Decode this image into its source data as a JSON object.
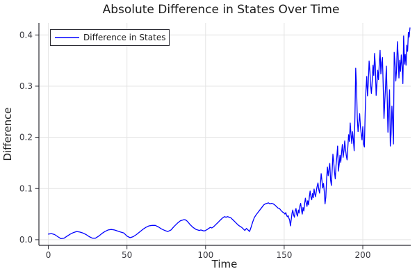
{
  "chart_data": {
    "type": "line",
    "title": "Absolute Difference in States Over Time",
    "xlabel": "Time",
    "ylabel": "Difference",
    "legend": {
      "position": "top-left",
      "label": "Difference in States"
    },
    "line_color": "#0000ff",
    "grid_color": "#e4e4e4",
    "axis_color": "#2b2b33",
    "background": "#ffffff",
    "grid": true,
    "xlim": [
      -6,
      230.5
    ],
    "ylim": [
      -0.011,
      0.4235
    ],
    "xticks": {
      "values": [
        0,
        50,
        100,
        150,
        200
      ],
      "labels": [
        "0",
        "50",
        "100",
        "150",
        "200"
      ]
    },
    "yticks": {
      "values": [
        0,
        0.1,
        0.2,
        0.3,
        0.4
      ],
      "labels": [
        "0.0",
        "0.1",
        "0.2",
        "0.3",
        "0.4"
      ]
    },
    "series": [
      {
        "name": "Difference in States",
        "points": [
          [
            0,
            0.011
          ],
          [
            2,
            0.012
          ],
          [
            4,
            0.01
          ],
          [
            6,
            0.006
          ],
          [
            8,
            0.002
          ],
          [
            10,
            0.003
          ],
          [
            12,
            0.007
          ],
          [
            14,
            0.011
          ],
          [
            16,
            0.014
          ],
          [
            18,
            0.016
          ],
          [
            20,
            0.015
          ],
          [
            22,
            0.013
          ],
          [
            24,
            0.01
          ],
          [
            26,
            0.006
          ],
          [
            28,
            0.003
          ],
          [
            30,
            0.003
          ],
          [
            32,
            0.007
          ],
          [
            34,
            0.012
          ],
          [
            36,
            0.016
          ],
          [
            38,
            0.019
          ],
          [
            40,
            0.02
          ],
          [
            42,
            0.019
          ],
          [
            44,
            0.017
          ],
          [
            46,
            0.015
          ],
          [
            48,
            0.013
          ],
          [
            50,
            0.007
          ],
          [
            52,
            0.004
          ],
          [
            54,
            0.006
          ],
          [
            56,
            0.01
          ],
          [
            58,
            0.015
          ],
          [
            60,
            0.02
          ],
          [
            62,
            0.024
          ],
          [
            64,
            0.027
          ],
          [
            66,
            0.028
          ],
          [
            68,
            0.028
          ],
          [
            70,
            0.025
          ],
          [
            72,
            0.021
          ],
          [
            74,
            0.018
          ],
          [
            76,
            0.016
          ],
          [
            78,
            0.019
          ],
          [
            80,
            0.026
          ],
          [
            82,
            0.032
          ],
          [
            84,
            0.037
          ],
          [
            86,
            0.039
          ],
          [
            87,
            0.039
          ],
          [
            88,
            0.037
          ],
          [
            89,
            0.034
          ],
          [
            90,
            0.03
          ],
          [
            91,
            0.027
          ],
          [
            92,
            0.024
          ],
          [
            93,
            0.022
          ],
          [
            94,
            0.02
          ],
          [
            95,
            0.019
          ],
          [
            96,
            0.018
          ],
          [
            97,
            0.019
          ],
          [
            98,
            0.018
          ],
          [
            99,
            0.017
          ],
          [
            100,
            0.018
          ],
          [
            101,
            0.02
          ],
          [
            102,
            0.022
          ],
          [
            103,
            0.024
          ],
          [
            104,
            0.023
          ],
          [
            105,
            0.025
          ],
          [
            106,
            0.028
          ],
          [
            107,
            0.031
          ],
          [
            108,
            0.034
          ],
          [
            109,
            0.037
          ],
          [
            110,
            0.04
          ],
          [
            111,
            0.043
          ],
          [
            112,
            0.045
          ],
          [
            113,
            0.044
          ],
          [
            114,
            0.045
          ],
          [
            115,
            0.044
          ],
          [
            116,
            0.043
          ],
          [
            117,
            0.04
          ],
          [
            118,
            0.037
          ],
          [
            119,
            0.034
          ],
          [
            120,
            0.031
          ],
          [
            121,
            0.028
          ],
          [
            122,
            0.026
          ],
          [
            123,
            0.024
          ],
          [
            124,
            0.021
          ],
          [
            125,
            0.018
          ],
          [
            126,
            0.022
          ],
          [
            127,
            0.019
          ],
          [
            128,
            0.016
          ],
          [
            129,
            0.025
          ],
          [
            130,
            0.035
          ],
          [
            131,
            0.043
          ],
          [
            132,
            0.048
          ],
          [
            133,
            0.052
          ],
          [
            134,
            0.056
          ],
          [
            135,
            0.06
          ],
          [
            136,
            0.064
          ],
          [
            137,
            0.068
          ],
          [
            138,
            0.07
          ],
          [
            139,
            0.071
          ],
          [
            140,
            0.072
          ],
          [
            141,
            0.07
          ],
          [
            142,
            0.071
          ],
          [
            143,
            0.07
          ],
          [
            144,
            0.068
          ],
          [
            145,
            0.065
          ],
          [
            146,
            0.062
          ],
          [
            147,
            0.061
          ],
          [
            148,
            0.057
          ],
          [
            149,
            0.054
          ],
          [
            150,
            0.052
          ],
          [
            150.5,
            0.05
          ],
          [
            151,
            0.053
          ],
          [
            151.5,
            0.048
          ],
          [
            152,
            0.045
          ],
          [
            152.5,
            0.047
          ],
          [
            153,
            0.042
          ],
          [
            153.5,
            0.038
          ],
          [
            154,
            0.027
          ],
          [
            154.5,
            0.04
          ],
          [
            155,
            0.052
          ],
          [
            155.5,
            0.058
          ],
          [
            156,
            0.048
          ],
          [
            156.5,
            0.044
          ],
          [
            157,
            0.056
          ],
          [
            157.5,
            0.061
          ],
          [
            158,
            0.05
          ],
          [
            158.5,
            0.046
          ],
          [
            159,
            0.058
          ],
          [
            159.5,
            0.052
          ],
          [
            160,
            0.066
          ],
          [
            160.5,
            0.071
          ],
          [
            161,
            0.058
          ],
          [
            161.5,
            0.05
          ],
          [
            162,
            0.063
          ],
          [
            162.5,
            0.056
          ],
          [
            163,
            0.07
          ],
          [
            163.5,
            0.081
          ],
          [
            164,
            0.072
          ],
          [
            164.5,
            0.065
          ],
          [
            165,
            0.076
          ],
          [
            165.5,
            0.068
          ],
          [
            166,
            0.084
          ],
          [
            166.5,
            0.095
          ],
          [
            167,
            0.083
          ],
          [
            167.5,
            0.078
          ],
          [
            168,
            0.09
          ],
          [
            168.5,
            0.082
          ],
          [
            169,
            0.099
          ],
          [
            169.5,
            0.089
          ],
          [
            170,
            0.084
          ],
          [
            170.5,
            0.097
          ],
          [
            171,
            0.105
          ],
          [
            171.5,
            0.111
          ],
          [
            172,
            0.098
          ],
          [
            172.5,
            0.091
          ],
          [
            173,
            0.106
          ],
          [
            173.5,
            0.129
          ],
          [
            174,
            0.116
          ],
          [
            174.5,
            0.101
          ],
          [
            175,
            0.11
          ],
          [
            175.5,
            0.094
          ],
          [
            176,
            0.07
          ],
          [
            176.5,
            0.083
          ],
          [
            177,
            0.12
          ],
          [
            177.5,
            0.142
          ],
          [
            178,
            0.125
          ],
          [
            178.5,
            0.138
          ],
          [
            179,
            0.149
          ],
          [
            179.5,
            0.117
          ],
          [
            180,
            0.106
          ],
          [
            180.5,
            0.135
          ],
          [
            181,
            0.167
          ],
          [
            181.5,
            0.151
          ],
          [
            182,
            0.132
          ],
          [
            182.5,
            0.119
          ],
          [
            183,
            0.146
          ],
          [
            183.5,
            0.163
          ],
          [
            184,
            0.183
          ],
          [
            184.5,
            0.134
          ],
          [
            185,
            0.148
          ],
          [
            185.5,
            0.165
          ],
          [
            186,
            0.151
          ],
          [
            186.5,
            0.171
          ],
          [
            187,
            0.186
          ],
          [
            187.5,
            0.161
          ],
          [
            188,
            0.174
          ],
          [
            188.5,
            0.193
          ],
          [
            189,
            0.177
          ],
          [
            189.5,
            0.164
          ],
          [
            190,
            0.156
          ],
          [
            190.5,
            0.181
          ],
          [
            191,
            0.205
          ],
          [
            191.5,
            0.192
          ],
          [
            192,
            0.228
          ],
          [
            192.5,
            0.206
          ],
          [
            193,
            0.188
          ],
          [
            193.5,
            0.211
          ],
          [
            194,
            0.196
          ],
          [
            194.5,
            0.174
          ],
          [
            195,
            0.24
          ],
          [
            195.5,
            0.335
          ],
          [
            196,
            0.298
          ],
          [
            196.5,
            0.237
          ],
          [
            197,
            0.211
          ],
          [
            197.5,
            0.227
          ],
          [
            198,
            0.246
          ],
          [
            198.5,
            0.221
          ],
          [
            199,
            0.207
          ],
          [
            199.5,
            0.195
          ],
          [
            200,
            0.221
          ],
          [
            200.5,
            0.187
          ],
          [
            201,
            0.181
          ],
          [
            201.5,
            0.246
          ],
          [
            202,
            0.291
          ],
          [
            202.5,
            0.319
          ],
          [
            203,
            0.281
          ],
          [
            203.5,
            0.306
          ],
          [
            204,
            0.349
          ],
          [
            204.5,
            0.329
          ],
          [
            205,
            0.301
          ],
          [
            205.5,
            0.286
          ],
          [
            206,
            0.311
          ],
          [
            206.5,
            0.341
          ],
          [
            207,
            0.321
          ],
          [
            207.5,
            0.364
          ],
          [
            208,
            0.339
          ],
          [
            208.5,
            0.282
          ],
          [
            209,
            0.306
          ],
          [
            209.5,
            0.331
          ],
          [
            210,
            0.313
          ],
          [
            210.5,
            0.346
          ],
          [
            211,
            0.37
          ],
          [
            211.5,
            0.324
          ],
          [
            212,
            0.346
          ],
          [
            212.5,
            0.356
          ],
          [
            213,
            0.299
          ],
          [
            213.5,
            0.237
          ],
          [
            214,
            0.271
          ],
          [
            214.5,
            0.301
          ],
          [
            215,
            0.339
          ],
          [
            215.5,
            0.279
          ],
          [
            216,
            0.21
          ],
          [
            216.5,
            0.252
          ],
          [
            217,
            0.293
          ],
          [
            217.5,
            0.183
          ],
          [
            218,
            0.206
          ],
          [
            218.5,
            0.261
          ],
          [
            219,
            0.229
          ],
          [
            219.5,
            0.187
          ],
          [
            220,
            0.366
          ],
          [
            220.5,
            0.345
          ],
          [
            221,
            0.31
          ],
          [
            221.5,
            0.331
          ],
          [
            222,
            0.387
          ],
          [
            222.5,
            0.359
          ],
          [
            223,
            0.316
          ],
          [
            223.5,
            0.351
          ],
          [
            224,
            0.329
          ],
          [
            224.5,
            0.361
          ],
          [
            225,
            0.338
          ],
          [
            225.5,
            0.305
          ],
          [
            226,
            0.398
          ],
          [
            226.5,
            0.343
          ],
          [
            227,
            0.362
          ],
          [
            227.5,
            0.341
          ],
          [
            228,
            0.38
          ],
          [
            228.5,
            0.368
          ],
          [
            229,
            0.405
          ],
          [
            229.5,
            0.396
          ],
          [
            230,
            0.414
          ]
        ]
      }
    ]
  }
}
